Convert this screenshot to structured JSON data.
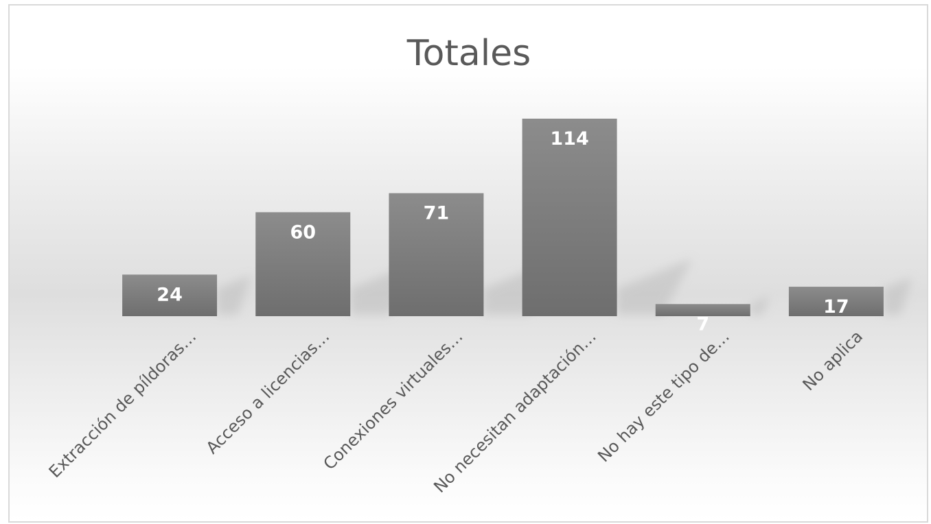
{
  "chart_data": {
    "type": "bar",
    "title": "Totales",
    "categories": [
      "Extracción de píldoras…",
      "Acceso a licencias…",
      "Conexiones virtuales…",
      "No necesitan adaptación…",
      "No hay este tipo de…",
      "No aplica"
    ],
    "values": [
      24,
      60,
      71,
      114,
      7,
      17
    ],
    "ylim": [
      0,
      120
    ],
    "grid": false,
    "legend": "none",
    "colors": {
      "bar_top": "#8c8c8c",
      "bar_bottom": "#6e6e6e",
      "label": "#ffffff",
      "text": "#595959"
    }
  }
}
